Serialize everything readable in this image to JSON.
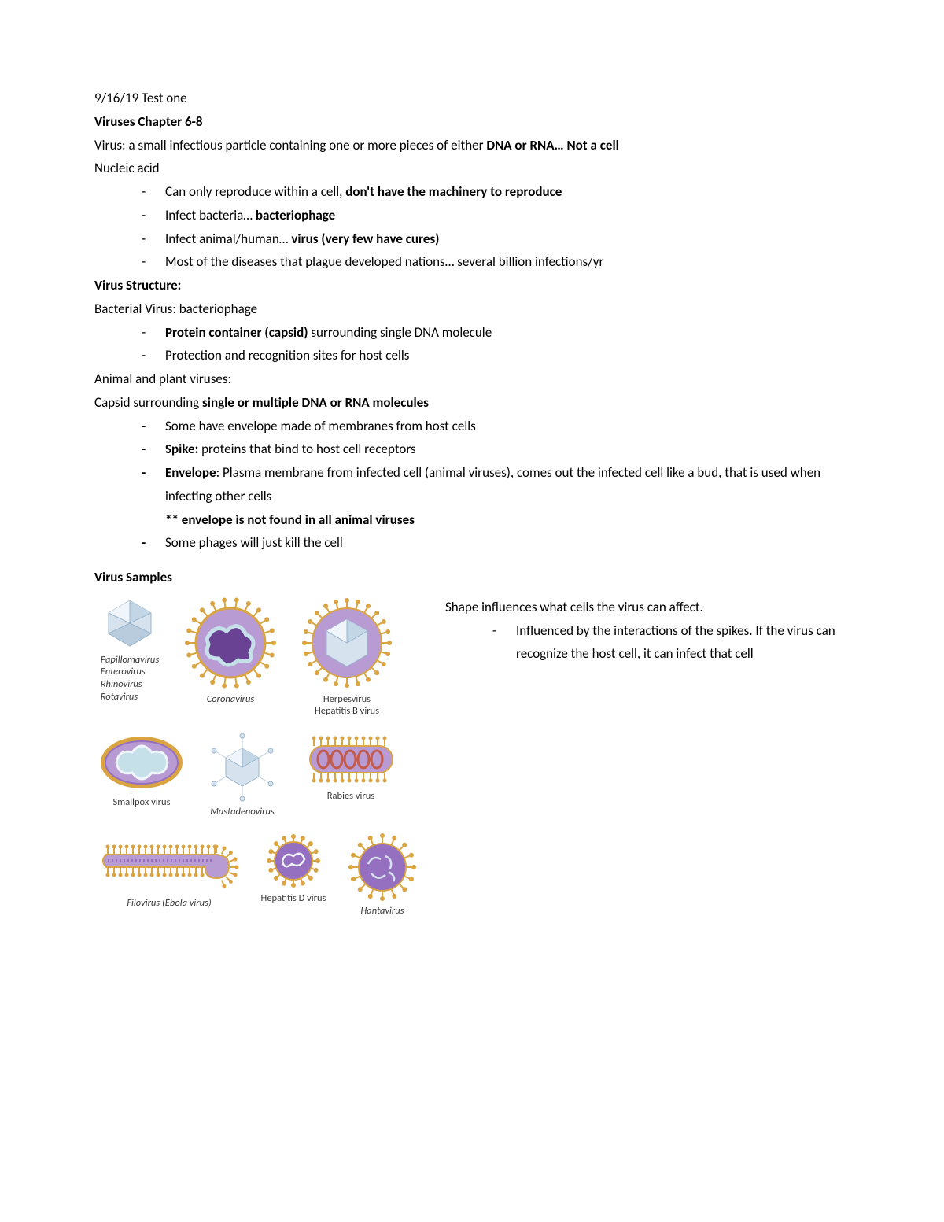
{
  "date": "9/16/19 Test one",
  "chapter": "Viruses Chapter 6-8",
  "intro": {
    "prefix": "Virus: a small infectious particle containing one or more pieces of either ",
    "bold": "DNA or RNA… Not a cell"
  },
  "nucleic_heading": "Nucleic acid",
  "nucleic_bullets": [
    {
      "pre": "Can only reproduce within a cell, ",
      "bold": "don't have the machinery to reproduce",
      "post": ""
    },
    {
      "pre": "Infect bacteria… ",
      "bold": "bacteriophage",
      "post": ""
    },
    {
      "pre": "Infect animal/human… ",
      "bold": "virus (very few have cures)",
      "post": ""
    },
    {
      "pre": "Most of the diseases that plague developed nations… several billion infections/yr",
      "bold": "",
      "post": ""
    }
  ],
  "structure_heading": "Virus Structure:",
  "bacterial_heading": "Bacterial Virus: bacteriophage",
  "bacterial_bullets": [
    {
      "pre": "",
      "bold": "Protein container (capsid) ",
      "post": "surrounding single DNA molecule"
    },
    {
      "pre": "Protection and recognition sites for host cells",
      "bold": "",
      "post": ""
    }
  ],
  "animal_heading": "Animal and plant viruses:",
  "capsid_line": {
    "pre": "Capsid surrounding ",
    "bold": "single or multiple DNA or RNA molecules"
  },
  "capsid_bullets": [
    {
      "pre": "Some have envelope made of membranes from host cells",
      "bold": "",
      "post": ""
    },
    {
      "pre": "",
      "bold": "Spike: ",
      "post": "proteins that bind to host cell receptors"
    },
    {
      "pre": "",
      "bold": "Envelope",
      "post": ": Plasma membrane from infected cell (animal viruses), comes out the infected cell like a bud, that is used when infecting other cells"
    },
    {
      "pre": "Some phages will just kill the cell",
      "bold": "",
      "post": ""
    }
  ],
  "envelope_note": "** envelope is not found in all animal viruses",
  "samples_heading": "Virus Samples",
  "right_intro": "Shape influences what cells the virus can affect.",
  "right_bullet": "Influenced by the interactions of the spikes. If the virus can recognize the host cell, it can infect that cell",
  "virus_labels": {
    "papilloma": "Papillomavirus\nEnterovirus\nRhinovirus\nRotavirus",
    "corona": "Coronavirus",
    "herpes": "Herpesvirus\nHepatitis B virus",
    "smallpox": "Smallpox virus",
    "mastadeno": "Mastadenovirus",
    "rabies": "Rabies virus",
    "filo": "Filovirus (Ebola virus)",
    "hepd": "Hepatitis D virus",
    "hanta": "Hantavirus"
  },
  "colors": {
    "ico_light": "#d6e3ef",
    "ico_mid": "#b8ccdd",
    "ico_dark": "#9ab5cc",
    "purple_light": "#b99bd4",
    "purple_mid": "#9670c0",
    "purple_dark": "#6a4294",
    "orange": "#d9a441",
    "orange_dark": "#c68a2a",
    "teal": "#c5e0e8",
    "red": "#c35a4a"
  }
}
